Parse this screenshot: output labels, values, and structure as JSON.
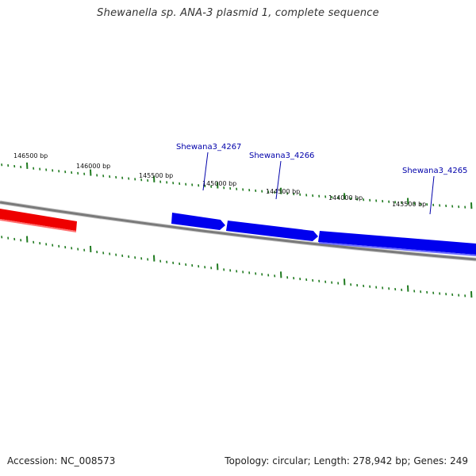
{
  "title": "Shewanella sp. ANA-3 plasmid 1, complete sequence",
  "colors": {
    "backbone": "#7a7a7a",
    "tick": "#1f7a1f",
    "forward_gene": "#0000ee",
    "reverse_gene": "#ee0000",
    "label_line": "#0000aa"
  },
  "ruler_labels": [
    "146500 bp",
    "146000 bp",
    "145500 bp",
    "145000 bp",
    "144500 bp",
    "144000 bp",
    "143500 bp"
  ],
  "genes": [
    {
      "name": "",
      "strand": "reverse"
    },
    {
      "name": "Shewana3_4267",
      "strand": "forward"
    },
    {
      "name": "Shewana3_4266",
      "strand": "forward"
    },
    {
      "name": "Shewana3_4265",
      "strand": "forward"
    }
  ],
  "footer": {
    "accession": "Accession: NC_008573",
    "stats": "Topology: circular; Length: 278,942 bp; Genes: 249"
  }
}
